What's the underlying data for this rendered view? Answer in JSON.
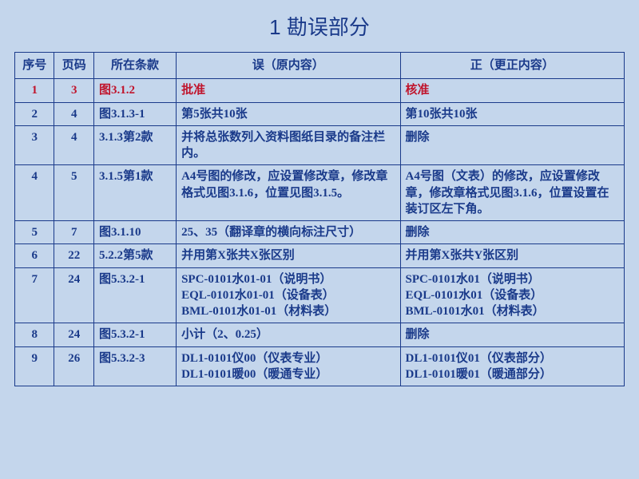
{
  "title": "1 勘误部分",
  "colors": {
    "background": "#c4d6ec",
    "border": "#1a3a8a",
    "text": "#1a3a8a",
    "highlight_text": "#c0142c"
  },
  "table": {
    "headers": {
      "seq": "序号",
      "page": "页码",
      "clause": "所在条款",
      "wrong": "误（原内容）",
      "right": "正（更正内容）"
    },
    "rows": [
      {
        "seq": "1",
        "page": "3",
        "clause": "图3.1.2",
        "wrong": "批准",
        "right": "核准",
        "highlight": true
      },
      {
        "seq": "2",
        "page": "4",
        "clause": "图3.1.3-1",
        "wrong": "第5张共10张",
        "right": "第10张共10张"
      },
      {
        "seq": "3",
        "page": "4",
        "clause": "3.1.3第2款",
        "wrong": "并将总张数列入资料图纸目录的备注栏内。",
        "right": "删除"
      },
      {
        "seq": "4",
        "page": "5",
        "clause": "3.1.5第1款",
        "wrong": "A4号图的修改，应设置修改章，修改章格式见图3.1.6，位置见图3.1.5。",
        "right": "A4号图（文表）的修改，应设置修改章，修改章格式见图3.1.6，位置设置在装订区左下角。"
      },
      {
        "seq": "5",
        "page": "7",
        "clause": "图3.1.10",
        "wrong": "25、35（翻译章的横向标注尺寸）",
        "right": "删除"
      },
      {
        "seq": "6",
        "page": "22",
        "clause": "5.2.2第5款",
        "wrong": "并用第X张共X张区别",
        "right": "并用第X张共Y张区别"
      },
      {
        "seq": "7",
        "page": "24",
        "clause": "图5.3.2-1",
        "wrong": "SPC-0101水01-01（说明书）\nEQL-0101水01-01（设备表）\nBML-0101水01-01（材料表）",
        "right": "SPC-0101水01（说明书）\nEQL-0101水01（设备表）\nBML-0101水01（材料表）"
      },
      {
        "seq": "8",
        "page": "24",
        "clause": "图5.3.2-1",
        "wrong": "小计（2、0.25）",
        "right": "删除"
      },
      {
        "seq": "9",
        "page": "26",
        "clause": "图5.3.2-3",
        "wrong": "DL1-0101仪00（仪表专业）\nDL1-0101暖00（暖通专业）",
        "right": "DL1-0101仪01（仪表部分）\nDL1-0101暖01（暖通部分）"
      }
    ]
  }
}
